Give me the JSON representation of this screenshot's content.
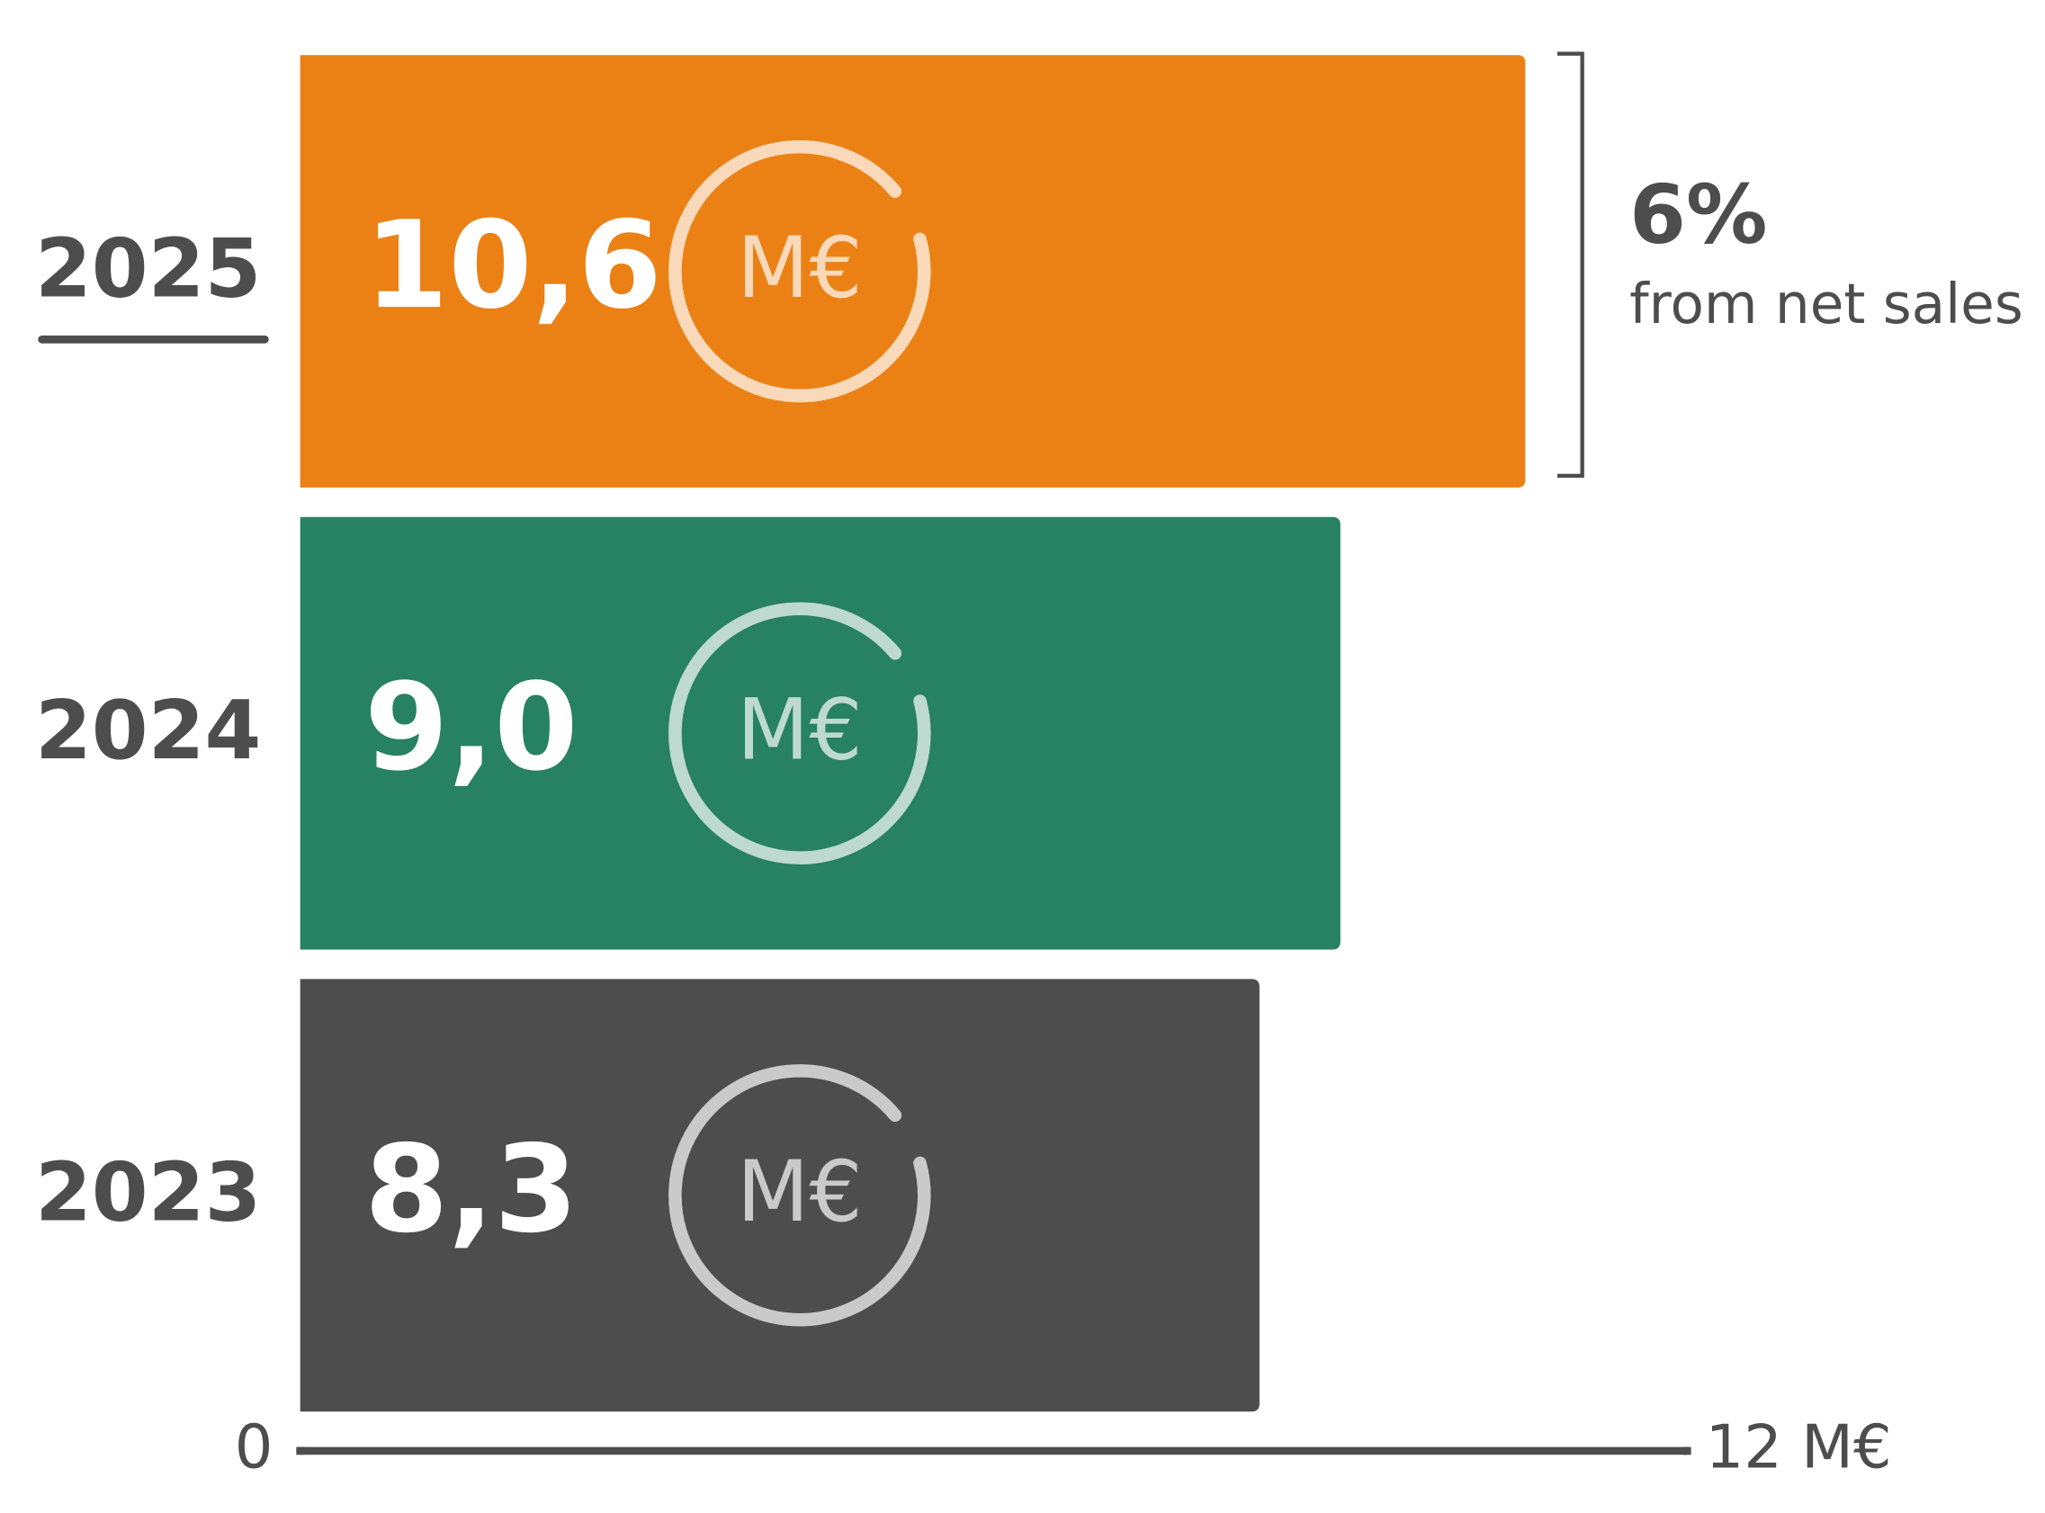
{
  "chart_data": {
    "type": "hbar",
    "categories": [
      "2025",
      "2024",
      "2023"
    ],
    "values": [
      10.6,
      9.0,
      8.3
    ],
    "value_labels": [
      "10,6",
      "9,0",
      "8,3"
    ],
    "colors": [
      "#eb8115",
      "#278163",
      "#4d4d4d"
    ],
    "unit_icon": "M€",
    "xlim": [
      0,
      12
    ],
    "xticks": [
      0,
      {
        "value": 12,
        "label": "12 M€"
      }
    ],
    "annotation": {
      "value": "6%",
      "text": "from net sales"
    }
  }
}
